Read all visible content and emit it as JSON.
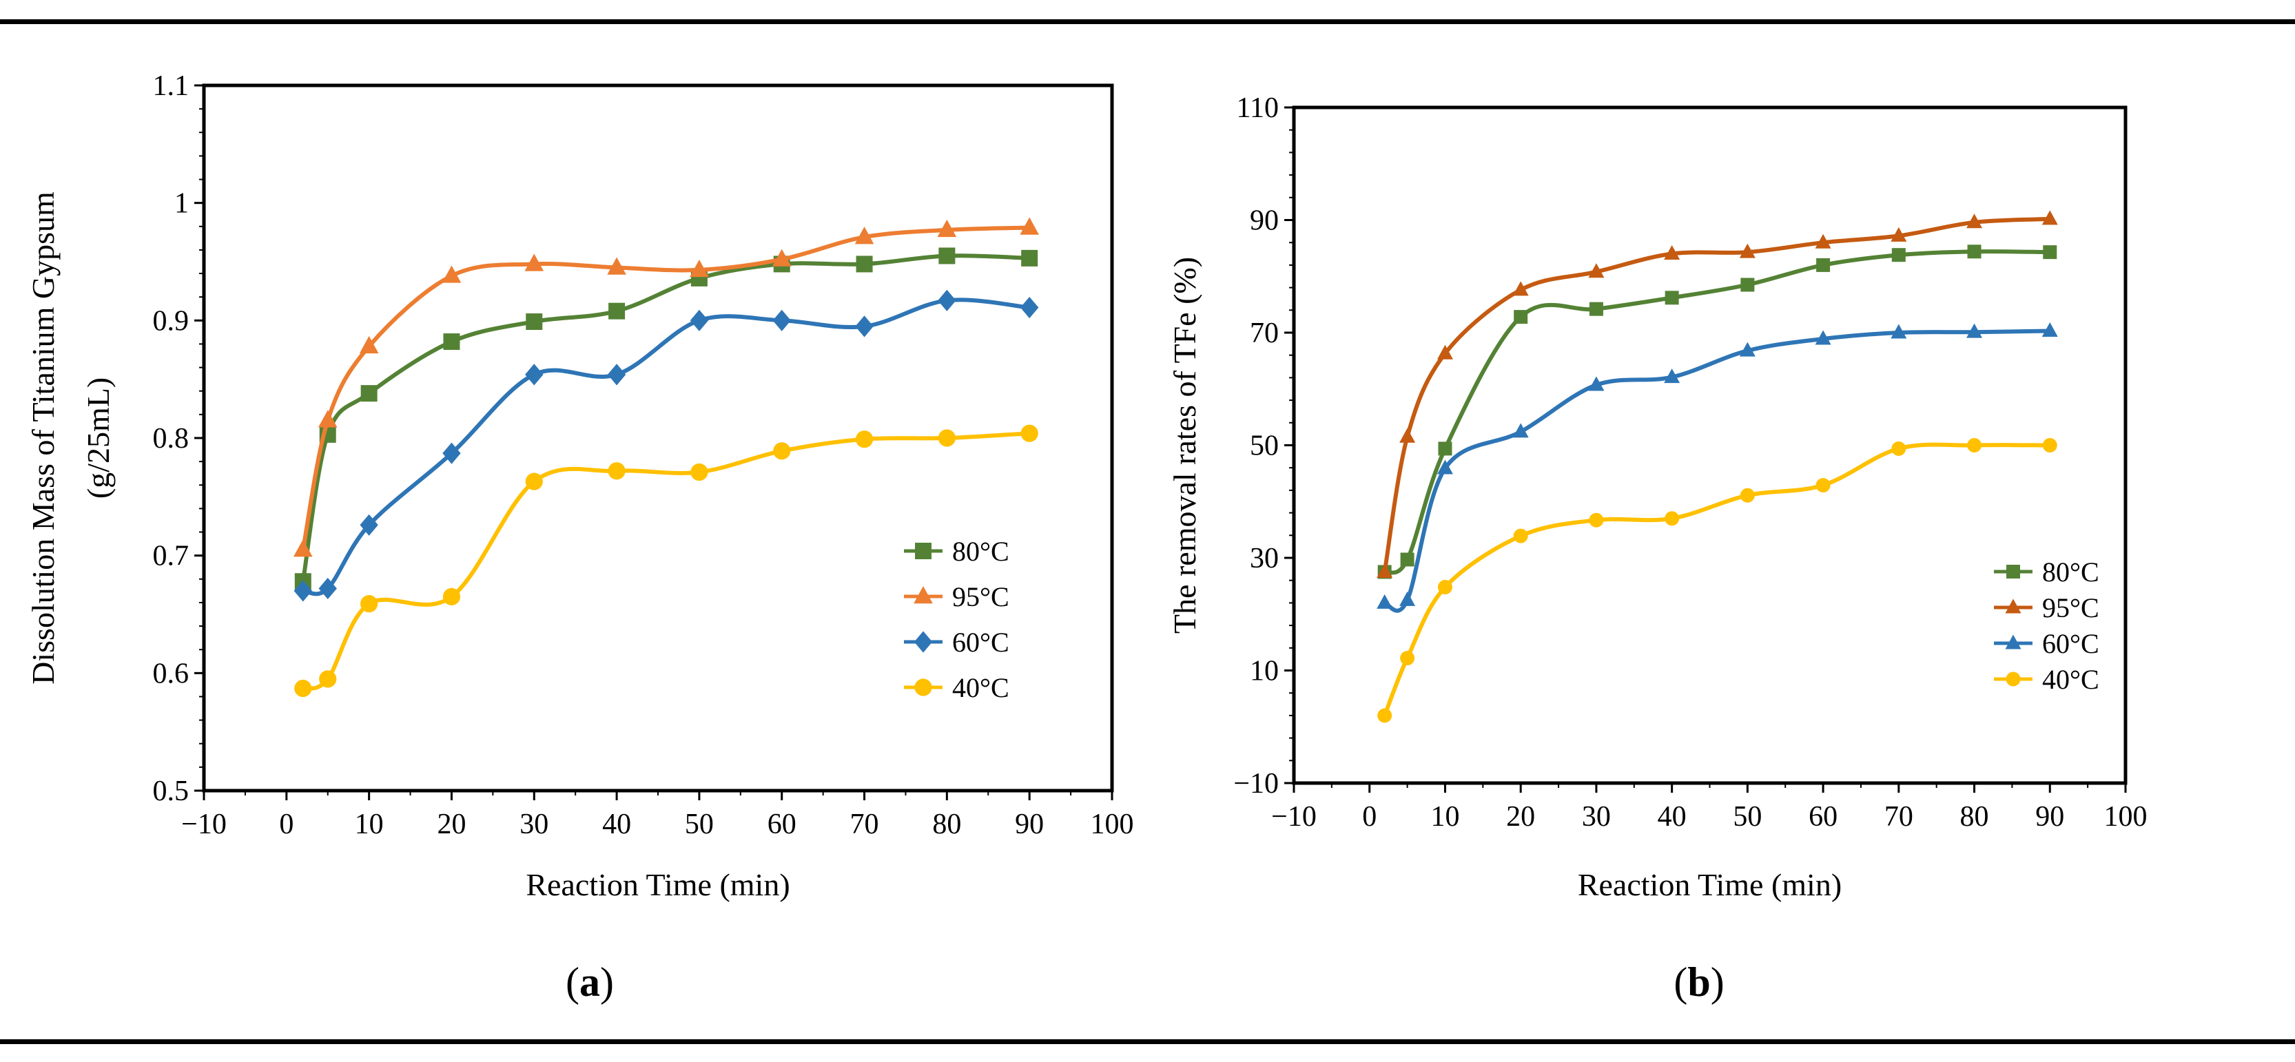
{
  "panel_labels": {
    "a": "a",
    "b": "b"
  },
  "chart_data": [
    {
      "type": "line",
      "panel": "a",
      "title": "",
      "xlabel": "Reaction Time (min)",
      "ylabel_line1": "Dissolution Mass of Titanium Gypsum",
      "ylabel_line2": "(g/25mL)",
      "xlim": [
        -10,
        100
      ],
      "ylim": [
        0.5,
        1.1
      ],
      "xticks": [
        -10,
        0,
        10,
        20,
        30,
        40,
        50,
        60,
        70,
        80,
        90,
        100
      ],
      "xticklabels": [
        "−10",
        "0",
        "10",
        "20",
        "30",
        "40",
        "50",
        "60",
        "70",
        "80",
        "90",
        "100"
      ],
      "yticks": [
        0.5,
        0.6,
        0.7,
        0.8,
        0.9,
        1.0,
        1.1
      ],
      "yticklabels": [
        "0.5",
        "0.6",
        "0.7",
        "0.8",
        "0.9",
        "1",
        "1.1"
      ],
      "legend_position": "right-middle",
      "series": [
        {
          "name": "80°C",
          "color": "#548235",
          "marker": "square",
          "x": [
            2,
            5,
            10,
            20,
            30,
            40,
            50,
            60,
            70,
            80,
            90
          ],
          "y": [
            0.678,
            0.803,
            0.838,
            0.882,
            0.899,
            0.908,
            0.936,
            0.948,
            0.948,
            0.955,
            0.953
          ]
        },
        {
          "name": "95°C",
          "color": "#ED7D31",
          "marker": "triangle",
          "x": [
            2,
            5,
            10,
            20,
            30,
            40,
            50,
            60,
            70,
            80,
            90
          ],
          "y": [
            0.705,
            0.815,
            0.878,
            0.938,
            0.948,
            0.945,
            0.943,
            0.952,
            0.971,
            0.977,
            0.979
          ]
        },
        {
          "name": "60°C",
          "color": "#2E75B6",
          "marker": "diamond",
          "x": [
            2,
            5,
            10,
            20,
            30,
            40,
            50,
            60,
            70,
            80,
            90
          ],
          "y": [
            0.67,
            0.672,
            0.726,
            0.787,
            0.854,
            0.854,
            0.9,
            0.9,
            0.895,
            0.917,
            0.911
          ]
        },
        {
          "name": "40°C",
          "color": "#FFC000",
          "marker": "circle",
          "x": [
            2,
            5,
            10,
            20,
            30,
            40,
            50,
            60,
            70,
            80,
            90
          ],
          "y": [
            0.587,
            0.595,
            0.659,
            0.665,
            0.763,
            0.772,
            0.771,
            0.789,
            0.799,
            0.8,
            0.804
          ]
        }
      ]
    },
    {
      "type": "line",
      "panel": "b",
      "title": "",
      "xlabel": "Reaction Time (min)",
      "ylabel_line1": "The removal rates of  TFe (%)",
      "ylabel_line2": "",
      "xlim": [
        -10,
        100
      ],
      "ylim": [
        -10,
        110
      ],
      "xticks": [
        -10,
        0,
        10,
        20,
        30,
        40,
        50,
        60,
        70,
        80,
        90,
        100
      ],
      "xticklabels": [
        "−10",
        "0",
        "10",
        "20",
        "30",
        "40",
        "50",
        "60",
        "70",
        "80",
        "90",
        "100"
      ],
      "yticks": [
        -10,
        10,
        30,
        50,
        70,
        90,
        110
      ],
      "yticklabels": [
        "−10",
        "10",
        "30",
        "50",
        "70",
        "90",
        "110"
      ],
      "legend_position": "right-middle",
      "series": [
        {
          "name": "80°C",
          "color": "#548235",
          "marker": "square",
          "x": [
            2,
            5,
            10,
            20,
            30,
            40,
            50,
            60,
            70,
            80,
            90
          ],
          "y": [
            27.5,
            29.7,
            49.4,
            72.8,
            74.2,
            76.2,
            78.5,
            82.0,
            83.8,
            84.4,
            84.3
          ]
        },
        {
          "name": "95°C",
          "color": "#C55A11",
          "marker": "triangle",
          "x": [
            2,
            5,
            10,
            20,
            30,
            40,
            50,
            60,
            70,
            80,
            90
          ],
          "y": [
            27.5,
            51.5,
            66.3,
            77.6,
            80.8,
            84.0,
            84.3,
            86.0,
            87.2,
            89.6,
            90.2
          ]
        },
        {
          "name": "60°C",
          "color": "#2E75B6",
          "marker": "triangle",
          "x": [
            2,
            5,
            10,
            20,
            30,
            40,
            50,
            60,
            70,
            80,
            90
          ],
          "y": [
            22.0,
            22.5,
            45.9,
            52.4,
            60.7,
            62.1,
            66.8,
            68.9,
            70.0,
            70.1,
            70.3
          ]
        },
        {
          "name": "40°C",
          "color": "#FFC000",
          "marker": "circle",
          "x": [
            2,
            5,
            10,
            20,
            30,
            40,
            50,
            60,
            70,
            80,
            90
          ],
          "y": [
            2.0,
            12.2,
            24.8,
            33.9,
            36.7,
            37.0,
            41.1,
            42.9,
            49.4,
            50.0,
            50.0
          ]
        }
      ]
    }
  ]
}
